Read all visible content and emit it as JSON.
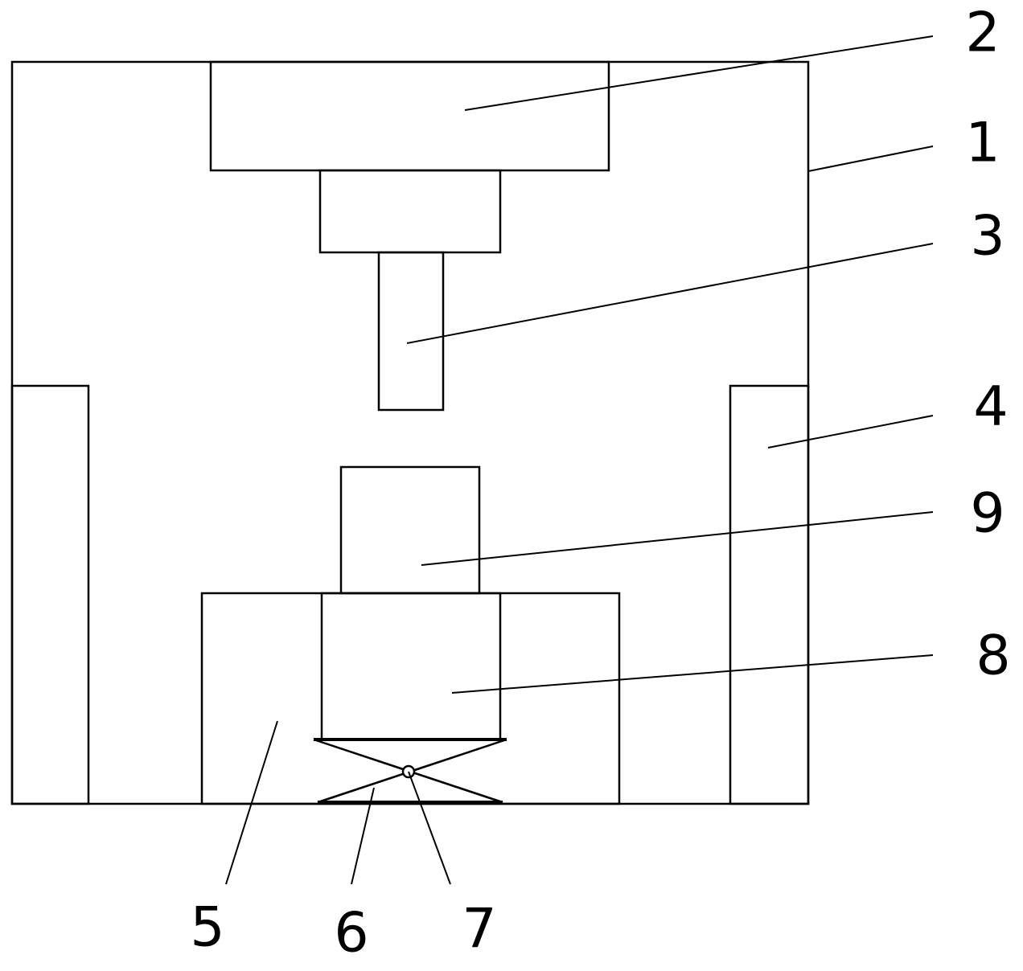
{
  "labels": {
    "part_1": "1",
    "part_2": "2",
    "part_3": "3",
    "part_4": "4",
    "part_5": "5",
    "part_6": "6",
    "part_7": "7",
    "part_8": "8",
    "part_9": "9"
  }
}
